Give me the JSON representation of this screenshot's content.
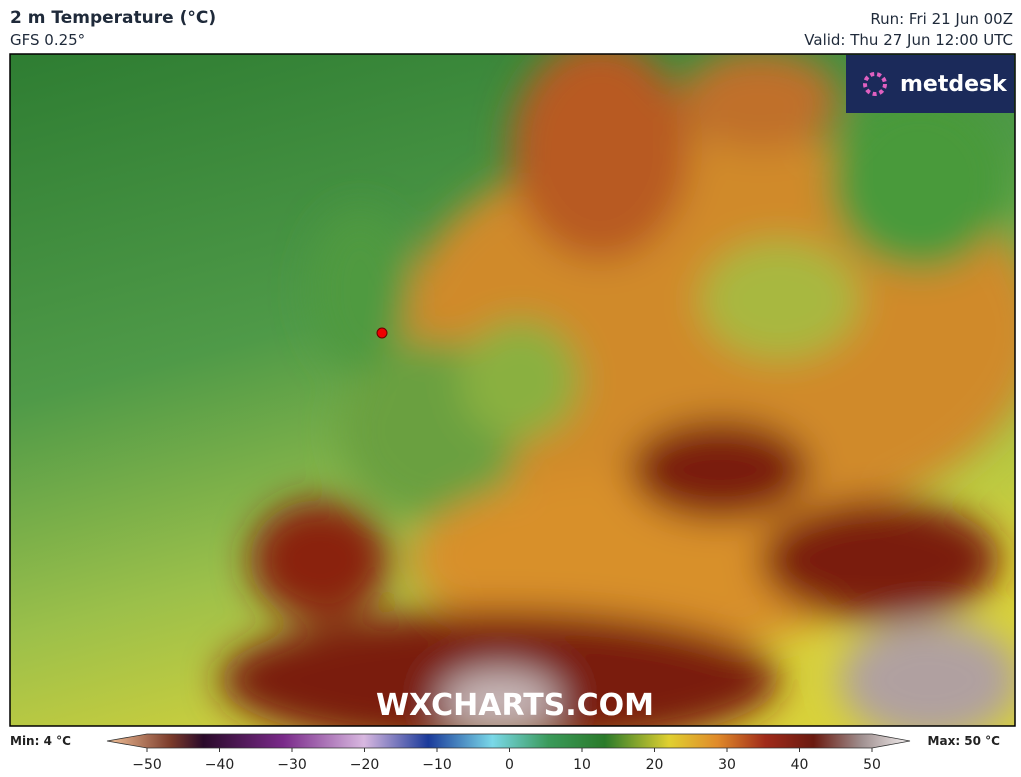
{
  "header": {
    "title": "2 m Temperature (°C)",
    "subtitle": "GFS 0.25°",
    "run": "Run: Fri 21 Jun 00Z",
    "valid": "Valid: Thu 27 Jun 12:00 UTC"
  },
  "logo": "metdesk",
  "watermark": "WXCHARTS.COM",
  "legend": {
    "min": "Min: 4 °C",
    "max": "Max: 50 °C",
    "range": [
      -50,
      50
    ],
    "ticks": [
      {
        "value": -50,
        "label": "−50"
      },
      {
        "value": -40,
        "label": "−40"
      },
      {
        "value": -30,
        "label": "−30"
      },
      {
        "value": -20,
        "label": "−20"
      },
      {
        "value": -10,
        "label": "−10"
      },
      0,
      10,
      20,
      30,
      40,
      50
    ]
  }
}
